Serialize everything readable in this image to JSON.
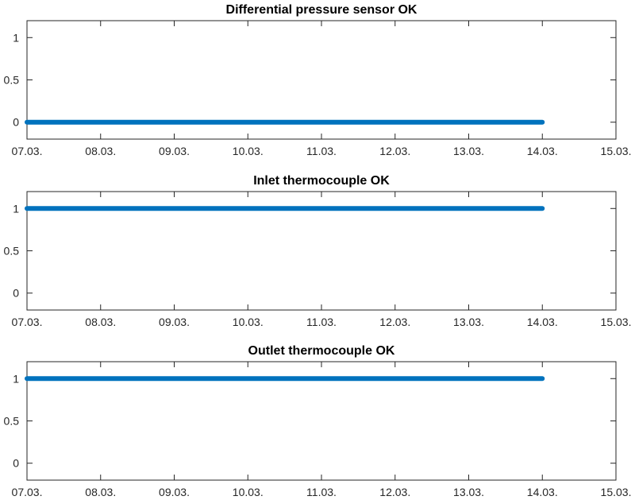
{
  "chart_data": [
    {
      "type": "line",
      "title": "Differential pressure sensor OK",
      "x_tick_labels": [
        "07.03.",
        "08.03.",
        "09.03.",
        "10.03.",
        "11.03.",
        "12.03.",
        "13.03.",
        "14.03.",
        "15.03."
      ],
      "y_tick_labels": [
        "0",
        "0.5",
        "1"
      ],
      "y_ticks": [
        0,
        0.5,
        1
      ],
      "xlim": [
        0,
        8
      ],
      "ylim": [
        -0.2,
        1.2
      ],
      "series": [
        {
          "x": [
            0,
            7
          ],
          "y": [
            0,
            0
          ],
          "color": "#0072BD"
        }
      ]
    },
    {
      "type": "line",
      "title": "Inlet thermocouple OK",
      "x_tick_labels": [
        "07.03.",
        "08.03.",
        "09.03.",
        "10.03.",
        "11.03.",
        "12.03.",
        "13.03.",
        "14.03.",
        "15.03."
      ],
      "y_tick_labels": [
        "0",
        "0.5",
        "1"
      ],
      "y_ticks": [
        0,
        0.5,
        1
      ],
      "xlim": [
        0,
        8
      ],
      "ylim": [
        -0.2,
        1.2
      ],
      "series": [
        {
          "x": [
            0,
            7
          ],
          "y": [
            1,
            1
          ],
          "color": "#0072BD"
        }
      ]
    },
    {
      "type": "line",
      "title": "Outlet thermocouple OK",
      "x_tick_labels": [
        "07.03.",
        "08.03.",
        "09.03.",
        "10.03.",
        "11.03.",
        "12.03.",
        "13.03.",
        "14.03.",
        "15.03."
      ],
      "y_tick_labels": [
        "0",
        "0.5",
        "1"
      ],
      "y_ticks": [
        0,
        0.5,
        1
      ],
      "xlim": [
        0,
        8
      ],
      "ylim": [
        -0.2,
        1.2
      ],
      "series": [
        {
          "x": [
            0,
            7
          ],
          "y": [
            1,
            1
          ],
          "color": "#0072BD"
        }
      ]
    }
  ]
}
